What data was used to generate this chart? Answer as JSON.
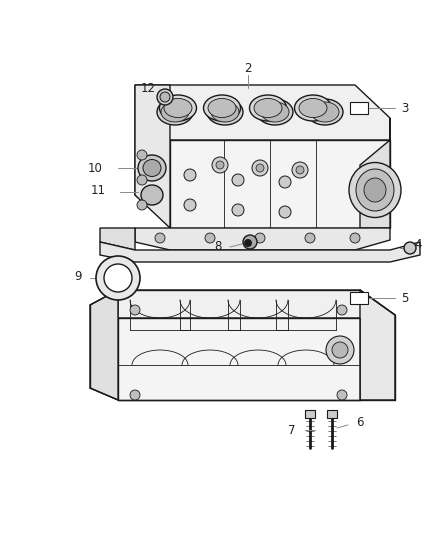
{
  "bg_color": "#ffffff",
  "line_color": "#1a1a1a",
  "gray_fill": "#e8e8e8",
  "dark_fill": "#cccccc",
  "figure_width": 4.38,
  "figure_height": 5.33,
  "dpi": 100,
  "label_color": "#222222",
  "leader_color": "#888888",
  "font_size": 8.5,
  "lw_main": 1.0,
  "lw_detail": 0.6,
  "lw_leader": 0.7
}
